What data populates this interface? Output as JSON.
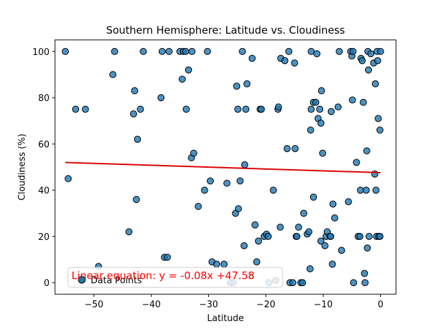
{
  "chart_data": {
    "type": "scatter",
    "title": "Southern Hemisphere: Latitude vs. Cloudiness",
    "xlabel": "Latitude",
    "ylabel": "Cloudiness (%)",
    "xlim": [
      -56.8,
      2.7
    ],
    "ylim": [
      -5,
      105
    ],
    "xticks": [
      -50,
      -40,
      -30,
      -20,
      -10,
      0
    ],
    "yticks": [
      0,
      20,
      40,
      60,
      80,
      100
    ],
    "xtick_labels": [
      "−50",
      "−40",
      "−30",
      "−20",
      "−10",
      "0"
    ],
    "ytick_labels": [
      "0",
      "20",
      "40",
      "60",
      "80",
      "100"
    ],
    "grid": false,
    "legend": {
      "position": "lower-left",
      "entries": [
        "Data Points"
      ]
    },
    "annotation": {
      "text": "Linear equation: y = -0.08x +47.58",
      "color": "#ff0000"
    },
    "regression": {
      "slope": -0.08,
      "intercept": 47.58,
      "x_range": [
        -55,
        0
      ],
      "color": "#dd0000"
    },
    "marker": {
      "fill": "#1f77b4",
      "edge": "#000000"
    },
    "series": [
      {
        "name": "Data Points",
        "points": [
          [
            -55,
            100
          ],
          [
            -54.5,
            45
          ],
          [
            -53.2,
            75
          ],
          [
            -51.5,
            75
          ],
          [
            -49.2,
            7
          ],
          [
            -46.7,
            90
          ],
          [
            -46.4,
            100
          ],
          [
            -43.9,
            22
          ],
          [
            -43.1,
            73
          ],
          [
            -42.9,
            83
          ],
          [
            -42.6,
            36
          ],
          [
            -42.4,
            62
          ],
          [
            -41.9,
            75
          ],
          [
            -41.4,
            100
          ],
          [
            -38.3,
            80
          ],
          [
            -38.1,
            100
          ],
          [
            -37.7,
            11
          ],
          [
            -37.2,
            11
          ],
          [
            -36.9,
            100
          ],
          [
            -35,
            100
          ],
          [
            -34.6,
            88
          ],
          [
            -34.4,
            100
          ],
          [
            -34,
            100
          ],
          [
            -33.9,
            75
          ],
          [
            -33.5,
            92
          ],
          [
            -33,
            54
          ],
          [
            -32.9,
            100
          ],
          [
            -32.6,
            56
          ],
          [
            -31.8,
            33
          ],
          [
            -30.7,
            40
          ],
          [
            -30.2,
            100
          ],
          [
            -29.7,
            44
          ],
          [
            -29.4,
            9
          ],
          [
            -28.6,
            8
          ],
          [
            -27.3,
            8
          ],
          [
            -26.8,
            43
          ],
          [
            -26.2,
            0
          ],
          [
            -25.7,
            0
          ],
          [
            -25.3,
            30
          ],
          [
            -25.1,
            85
          ],
          [
            -24.9,
            75
          ],
          [
            -24.8,
            32
          ],
          [
            -24.5,
            44
          ],
          [
            -24.1,
            100
          ],
          [
            -23.8,
            16
          ],
          [
            -23.7,
            51
          ],
          [
            -23.5,
            75
          ],
          [
            -23.3,
            86
          ],
          [
            -22.9,
            3
          ],
          [
            -22.4,
            97
          ],
          [
            -21.9,
            25
          ],
          [
            -21.6,
            9
          ],
          [
            -21.3,
            18
          ],
          [
            -21,
            75
          ],
          [
            -20.8,
            75
          ],
          [
            -20.3,
            20
          ],
          [
            -19.9,
            21
          ],
          [
            -19.6,
            20
          ],
          [
            -19.5,
            0
          ],
          [
            -18.7,
            40
          ],
          [
            -18.3,
            1
          ],
          [
            -17.9,
            75
          ],
          [
            -17.8,
            76
          ],
          [
            -17.5,
            24
          ],
          [
            -17.4,
            97
          ],
          [
            -16.7,
            96
          ],
          [
            -16.3,
            58
          ],
          [
            -16,
            100
          ],
          [
            -15.8,
            0
          ],
          [
            -15.3,
            0
          ],
          [
            -15,
            95
          ],
          [
            -14.9,
            58
          ],
          [
            -14.7,
            20
          ],
          [
            -14.6,
            20
          ],
          [
            -14.3,
            24
          ],
          [
            -13.9,
            0
          ],
          [
            -13.6,
            0
          ],
          [
            -13.4,
            30
          ],
          [
            -12.8,
            21
          ],
          [
            -12.5,
            22
          ],
          [
            -12.3,
            6
          ],
          [
            -12.2,
            66
          ],
          [
            -12.1,
            100
          ],
          [
            -12.1,
            75
          ],
          [
            -11.7,
            78
          ],
          [
            -11.7,
            37
          ],
          [
            -11.3,
            78
          ],
          [
            -11.1,
            99
          ],
          [
            -10.9,
            71
          ],
          [
            -10.6,
            75
          ],
          [
            -10.4,
            18
          ],
          [
            -10.4,
            69
          ],
          [
            -10.3,
            83
          ],
          [
            -10.1,
            56
          ],
          [
            -9.7,
            16
          ],
          [
            -9.5,
            20
          ],
          [
            -9.3,
            22
          ],
          [
            -8.8,
            20
          ],
          [
            -8.7,
            20
          ],
          [
            -8.6,
            74
          ],
          [
            -8.4,
            8
          ],
          [
            -8.3,
            34
          ],
          [
            -8,
            28
          ],
          [
            -7.4,
            76
          ],
          [
            -7.2,
            100
          ],
          [
            -6.8,
            14
          ],
          [
            -5.6,
            35
          ],
          [
            -5.2,
            100
          ],
          [
            -5,
            98
          ],
          [
            -4.9,
            79
          ],
          [
            -4.8,
            100
          ],
          [
            -4.7,
            0
          ],
          [
            -4.2,
            52
          ],
          [
            -3.9,
            20
          ],
          [
            -3.6,
            20
          ],
          [
            -3.5,
            40
          ],
          [
            -3.4,
            97
          ],
          [
            -3.2,
            96
          ],
          [
            -3,
            78
          ],
          [
            -2.8,
            4
          ],
          [
            -2.7,
            0
          ],
          [
            -2.5,
            40
          ],
          [
            -2.4,
            57
          ],
          [
            -2.3,
            15
          ],
          [
            -2.2,
            100
          ],
          [
            -2.1,
            92
          ],
          [
            -2,
            20
          ],
          [
            -1.7,
            99
          ],
          [
            -1.2,
            95
          ],
          [
            -1,
            47
          ],
          [
            -0.9,
            86
          ],
          [
            -0.8,
            40
          ],
          [
            -0.7,
            20
          ],
          [
            -0.6,
            100
          ],
          [
            -0.5,
            96
          ],
          [
            -0.4,
            71
          ],
          [
            -0.3,
            20
          ],
          [
            -0.1,
            66
          ],
          [
            -0.1,
            20
          ],
          [
            0,
            100
          ]
        ]
      }
    ]
  }
}
